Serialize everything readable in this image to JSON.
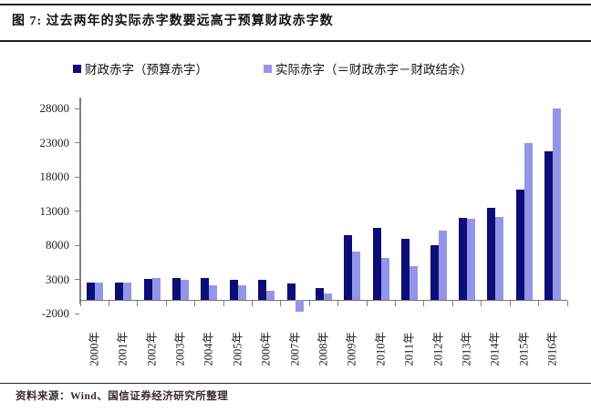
{
  "page": {
    "title": "图 7: 过去两年的实际赤字数要远高于预算财政赤字数",
    "source": "资料来源：Wind、国信证券经济研究所整理"
  },
  "legend": [
    {
      "label": "财政赤字（预算赤字）",
      "color": "#0d0d78"
    },
    {
      "label": "实际赤字（＝财政赤字－财政结余）",
      "color": "#9396e8"
    }
  ],
  "chart_data": {
    "type": "bar",
    "title": "图 7: 过去两年的实际赤字数要远高于预算财政赤字数",
    "categories": [
      "2000年",
      "2001年",
      "2002年",
      "2003年",
      "2004年",
      "2005年",
      "2006年",
      "2007年",
      "2008年",
      "2009年",
      "2010年",
      "2011年",
      "2012年",
      "2013年",
      "2014年",
      "2015年",
      "2016年"
    ],
    "series": [
      {
        "name": "财政赤字（预算赤字）",
        "color": "#0d0d78",
        "values": [
          2598,
          2598,
          3098,
          3198,
          3198,
          3000,
          2950,
          2450,
          1800,
          9500,
          10500,
          9000,
          8000,
          12000,
          13500,
          16200,
          21800
        ]
      },
      {
        "name": "实际赤字（＝财政赤字－财政结余）",
        "color": "#9396e8",
        "values": [
          2491,
          2517,
          3150,
          2935,
          2090,
          2100,
          1300,
          -1700,
          950,
          7100,
          6200,
          4900,
          10200,
          11950,
          12100,
          23000,
          28100
        ]
      }
    ],
    "yticks": [
      -2000,
      3000,
      8000,
      13000,
      18000,
      23000,
      28000
    ],
    "ylim": [
      -2000,
      29650
    ],
    "xlabel": "",
    "ylabel": "",
    "grid": false,
    "legend_position": "top"
  }
}
